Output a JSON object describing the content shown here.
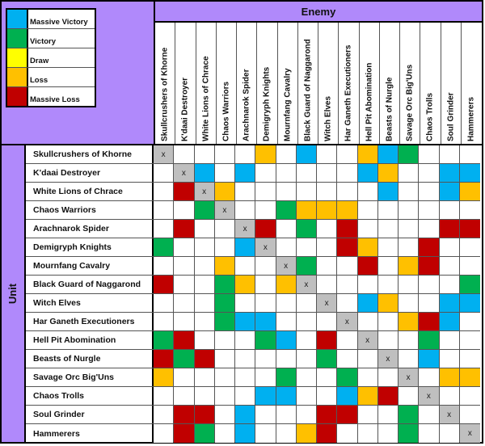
{
  "colors": {
    "header_purple": "#b089fb",
    "Massive Victory": "#00b0f0",
    "Victory": "#00b050",
    "Draw": "#ffff00",
    "Loss": "#ffc000",
    "Massive Loss": "#c00000",
    "Self": "#bfbfbf",
    "None": "#ffffff"
  },
  "legend": [
    {
      "label": "Massive Victory",
      "color": "#00b0f0"
    },
    {
      "label": "Victory",
      "color": "#00b050"
    },
    {
      "label": "Draw",
      "color": "#ffff00"
    },
    {
      "label": "Loss",
      "color": "#ffc000"
    },
    {
      "label": "Massive Loss",
      "color": "#c00000"
    }
  ],
  "enemy_label": "Enemy",
  "unit_label": "Unit",
  "chart_data": {
    "type": "heatmap",
    "title": "",
    "xlabel": "Enemy",
    "ylabel": "Unit",
    "legend": [
      "Massive Victory",
      "Victory",
      "Draw",
      "Loss",
      "Massive Loss"
    ],
    "legend_position": "top-left",
    "grid": true,
    "x": [
      "Skullcrushers of Khorne",
      "K'daai Destroyer",
      "White Lions of Chrace",
      "Chaos Warriors",
      "Arachnarok Spider",
      "Demigryph Knights",
      "Mournfang Cavalry",
      "Black Guard of Naggarond",
      "Witch Elves",
      "Har Ganeth Executioners",
      "Hell Pit Abomination",
      "Beasts of Nurgle",
      "Savage Orc Big'Uns",
      "Chaos Trolls",
      "Soul Grinder",
      "Hammerers"
    ],
    "y": [
      "Skullcrushers of Khorne",
      "K'daai Destroyer",
      "White Lions of Chrace",
      "Chaos Warriors",
      "Arachnarok Spider",
      "Demigryph Knights",
      "Mournfang Cavalry",
      "Black Guard of Naggarond",
      "Witch Elves",
      "Har Ganeth Executioners",
      "Hell Pit Abomination",
      "Beasts of Nurgle",
      "Savage Orc Big'Uns",
      "Chaos Trolls",
      "Soul Grinder",
      "Hammerers"
    ],
    "codes": {
      "MV": "Massive Victory",
      "V": "Victory",
      "D": "Draw",
      "L": "Loss",
      "ML": "Massive Loss",
      "X": "Self",
      "": "None"
    },
    "values": [
      [
        "X",
        "",
        "",
        "",
        "",
        "L",
        "",
        "MV",
        "",
        "",
        "L",
        "MV",
        "V",
        "",
        "",
        ""
      ],
      [
        "",
        "X",
        "MV",
        "",
        "MV",
        "",
        "",
        "",
        "",
        "",
        "MV",
        "L",
        "",
        "",
        "MV",
        "MV"
      ],
      [
        "",
        "ML",
        "X",
        "L",
        "",
        "",
        "",
        "",
        "",
        "",
        "",
        "MV",
        "",
        "",
        "MV",
        "L"
      ],
      [
        "",
        "",
        "V",
        "X",
        "",
        "",
        "V",
        "L",
        "L",
        "L",
        "",
        "",
        "",
        "",
        "",
        ""
      ],
      [
        "",
        "ML",
        "",
        "",
        "X",
        "ML",
        "",
        "V",
        "",
        "ML",
        "",
        "",
        "",
        "",
        "ML",
        "ML"
      ],
      [
        "V",
        "",
        "",
        "",
        "MV",
        "X",
        "",
        "",
        "",
        "ML",
        "L",
        "",
        "",
        "ML",
        "",
        ""
      ],
      [
        "",
        "",
        "",
        "L",
        "",
        "",
        "X",
        "V",
        "",
        "",
        "ML",
        "",
        "L",
        "ML",
        "",
        ""
      ],
      [
        "ML",
        "",
        "",
        "V",
        "L",
        "",
        "L",
        "X",
        "",
        "",
        "",
        "",
        "",
        "",
        "",
        "V"
      ],
      [
        "",
        "",
        "",
        "V",
        "",
        "",
        "",
        "",
        "X",
        "",
        "MV",
        "L",
        "",
        "",
        "MV",
        "MV"
      ],
      [
        "",
        "",
        "",
        "V",
        "MV",
        "MV",
        "",
        "",
        "",
        "X",
        "",
        "",
        "L",
        "ML",
        "MV",
        ""
      ],
      [
        "V",
        "ML",
        "",
        "",
        "",
        "V",
        "MV",
        "",
        "ML",
        "",
        "X",
        "",
        "",
        "V",
        "",
        ""
      ],
      [
        "ML",
        "V",
        "ML",
        "",
        "",
        "",
        "",
        "",
        "V",
        "",
        "",
        "X",
        "",
        "MV",
        "",
        ""
      ],
      [
        "L",
        "",
        "",
        "",
        "",
        "",
        "V",
        "",
        "",
        "V",
        "",
        "",
        "X",
        "",
        "L",
        "L"
      ],
      [
        "",
        "",
        "",
        "",
        "",
        "MV",
        "MV",
        "",
        "",
        "MV",
        "L",
        "ML",
        "",
        "X",
        "",
        ""
      ],
      [
        "",
        "ML",
        "ML",
        "",
        "MV",
        "",
        "",
        "",
        "ML",
        "ML",
        "",
        "",
        "V",
        "",
        "X",
        ""
      ],
      [
        "",
        "ML",
        "V",
        "",
        "MV",
        "",
        "",
        "L",
        "ML",
        "",
        "",
        "",
        "V",
        "",
        "",
        "X"
      ]
    ]
  }
}
